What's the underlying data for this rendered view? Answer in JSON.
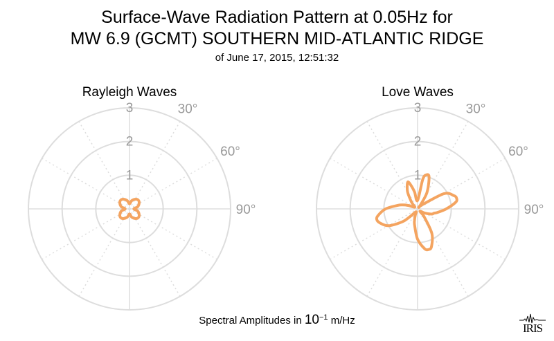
{
  "title_line1": "Surface-Wave Radiation Pattern at 0.05Hz for",
  "title_line2": "MW 6.9 (GCMT) SOUTHERN MID-ATLANTIC RIDGE",
  "subtitle": "of June 17, 2015, 12:51:32",
  "footer": {
    "prefix": "Spectral Amplitudes in ",
    "base": "10",
    "exponent": "−1",
    "unit": " m/Hz"
  },
  "logo_text": "IRIS",
  "colors": {
    "curve": "#f4a460",
    "grid": "#dddddd",
    "label": "#999999"
  },
  "chart_data": [
    {
      "type": "polar-line",
      "title": "Rayleigh Waves",
      "radial_ticks": [
        "1",
        "2",
        "3"
      ],
      "rlim": [
        0,
        3
      ],
      "angle_ticks": [
        "30°",
        "60°",
        "90°"
      ],
      "angle_unit": "degrees clockwise from north",
      "series": [
        {
          "angles": [
            0,
            15,
            30,
            45,
            60,
            75,
            90,
            105,
            120,
            135,
            150,
            165,
            180,
            195,
            210,
            225,
            240,
            255,
            270,
            285,
            300,
            315,
            330,
            345
          ],
          "r": [
            0.15,
            0.25,
            0.33,
            0.37,
            0.33,
            0.25,
            0.13,
            0.25,
            0.33,
            0.37,
            0.33,
            0.25,
            0.15,
            0.25,
            0.33,
            0.37,
            0.33,
            0.25,
            0.13,
            0.25,
            0.33,
            0.37,
            0.33,
            0.25
          ]
        }
      ]
    },
    {
      "type": "polar-line",
      "title": "Love Waves",
      "radial_ticks": [
        "1",
        "2",
        "3"
      ],
      "rlim": [
        0,
        3
      ],
      "angle_ticks": [
        "30°",
        "60°",
        "90°"
      ],
      "angle_unit": "degrees clockwise from north",
      "series": [
        {
          "angles": [
            0,
            10,
            15,
            20,
            30,
            40,
            45,
            60,
            70,
            75,
            80,
            90,
            100,
            105,
            110,
            120,
            135,
            140,
            150,
            160,
            165,
            170,
            180,
            190,
            195,
            200,
            210,
            225,
            230,
            240,
            250,
            255,
            260,
            270,
            280,
            285,
            290,
            300,
            315,
            320,
            330,
            340,
            345,
            350
          ],
          "r": [
            0.25,
            0.9,
            1.05,
            1.0,
            0.55,
            0.1,
            0.15,
            0.9,
            1.15,
            1.2,
            1.15,
            0.85,
            0.6,
            0.5,
            0.45,
            0.25,
            0.1,
            0.3,
            0.85,
            1.2,
            1.25,
            1.2,
            0.9,
            0.5,
            0.35,
            0.2,
            0.1,
            0.35,
            0.6,
            1.0,
            1.2,
            1.25,
            1.2,
            0.95,
            0.6,
            0.45,
            0.3,
            0.1,
            0.2,
            0.3,
            0.6,
            0.85,
            0.7,
            0.5
          ]
        }
      ]
    }
  ]
}
